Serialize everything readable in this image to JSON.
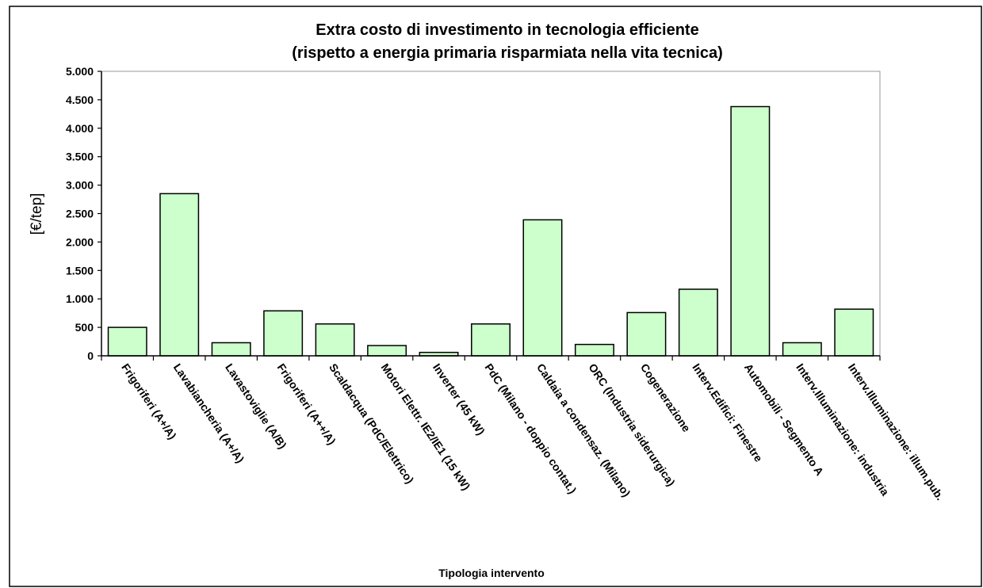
{
  "chart_data": {
    "type": "bar",
    "title": "Extra costo di investimento in tecnologia efficiente",
    "subtitle": "(rispetto a energia primaria risparmiata nella vita tecnica)",
    "y_label": "[€/tep]",
    "x_label": "Tipologia intervento",
    "categories": [
      "Frigoriferi (A+/A)",
      "Lavabiancheria (A+/A)",
      "Lavastoviglie (A/B)",
      "Frigoriferi (A++/A)",
      "Scaldacqua (PdC/Elettrico)",
      "Motori Elettr. IE2/IE1 (15 kW)",
      "Inverter (45 kW)",
      "PdC (Milano - doppio contat.)",
      "Caldaia a condensaz. (Milano)",
      "ORC (Industria siderurgica)",
      "Cogenerazione",
      "Interv.Edifici: Finestre",
      "Automobili - Segmento A",
      "Interv.Illuminazione: industria",
      "Interv.Illuminazione: illum.pub."
    ],
    "values": [
      500,
      2850,
      230,
      790,
      560,
      180,
      60,
      560,
      2390,
      200,
      760,
      1170,
      4380,
      230,
      820
    ],
    "color": "#ccffcc",
    "ylim": [
      0,
      5000
    ],
    "yticks": [
      0,
      500,
      {
        "value": 1000,
        "label": "1.000"
      },
      {
        "value": 1500,
        "label": "1.500"
      },
      {
        "value": 2000,
        "label": "2.000"
      },
      {
        "value": 2500,
        "label": "2.500"
      },
      {
        "value": 3000,
        "label": "3.000"
      },
      {
        "value": 3500,
        "label": "3.500"
      },
      {
        "value": 4000,
        "label": "4.000"
      },
      {
        "value": 4500,
        "label": "4.500"
      },
      {
        "value": 5000,
        "label": "5.000"
      }
    ],
    "grid": false
  }
}
